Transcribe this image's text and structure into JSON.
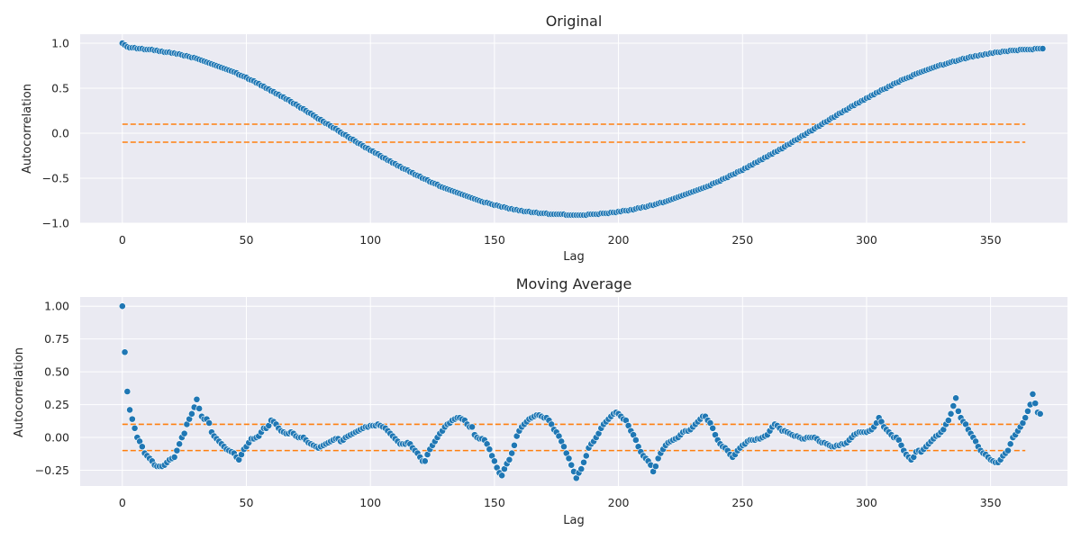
{
  "chart_data": [
    {
      "type": "scatter",
      "title": "Original",
      "xlabel": "Lag",
      "ylabel": "Autocorrelation",
      "xlim": [
        -17,
        381
      ],
      "ylim": [
        -1.0,
        1.1
      ],
      "xticks": [
        0,
        50,
        100,
        150,
        200,
        250,
        300,
        350
      ],
      "yticks": [
        -1.0,
        -0.5,
        0.0,
        0.5,
        1.0
      ],
      "ytick_labels": [
        "−1.0",
        "−0.5",
        "0.0",
        "0.5",
        "1.0"
      ],
      "grid": true,
      "series": [
        {
          "kind": "points",
          "color": "#1f77b4",
          "x_start": 0,
          "x_step": 1,
          "y": [
            1.0,
            0.98,
            0.96,
            0.95,
            0.95,
            0.95,
            0.94,
            0.94,
            0.94,
            0.93,
            0.93,
            0.93,
            0.93,
            0.92,
            0.92,
            0.91,
            0.91,
            0.9,
            0.9,
            0.9,
            0.89,
            0.89,
            0.88,
            0.88,
            0.87,
            0.86,
            0.86,
            0.85,
            0.84,
            0.84,
            0.83,
            0.82,
            0.81,
            0.8,
            0.79,
            0.78,
            0.77,
            0.76,
            0.75,
            0.74,
            0.73,
            0.72,
            0.71,
            0.7,
            0.69,
            0.68,
            0.67,
            0.65,
            0.64,
            0.63,
            0.62,
            0.6,
            0.59,
            0.58,
            0.56,
            0.55,
            0.53,
            0.52,
            0.5,
            0.49,
            0.47,
            0.46,
            0.44,
            0.43,
            0.41,
            0.4,
            0.38,
            0.37,
            0.35,
            0.33,
            0.32,
            0.3,
            0.28,
            0.27,
            0.25,
            0.23,
            0.22,
            0.2,
            0.18,
            0.16,
            0.15,
            0.13,
            0.11,
            0.1,
            0.08,
            0.06,
            0.05,
            0.03,
            0.01,
            -0.01,
            -0.02,
            -0.04,
            -0.06,
            -0.07,
            -0.09,
            -0.11,
            -0.12,
            -0.14,
            -0.16,
            -0.17,
            -0.19,
            -0.2,
            -0.22,
            -0.23,
            -0.25,
            -0.27,
            -0.28,
            -0.3,
            -0.31,
            -0.33,
            -0.34,
            -0.36,
            -0.37,
            -0.39,
            -0.4,
            -0.41,
            -0.43,
            -0.44,
            -0.46,
            -0.47,
            -0.48,
            -0.5,
            -0.51,
            -0.52,
            -0.54,
            -0.55,
            -0.56,
            -0.57,
            -0.59,
            -0.6,
            -0.61,
            -0.62,
            -0.63,
            -0.64,
            -0.65,
            -0.66,
            -0.67,
            -0.68,
            -0.69,
            -0.7,
            -0.71,
            -0.72,
            -0.73,
            -0.74,
            -0.75,
            -0.76,
            -0.77,
            -0.77,
            -0.78,
            -0.79,
            -0.8,
            -0.8,
            -0.81,
            -0.82,
            -0.82,
            -0.83,
            -0.84,
            -0.84,
            -0.85,
            -0.85,
            -0.86,
            -0.86,
            -0.87,
            -0.87,
            -0.87,
            -0.88,
            -0.88,
            -0.88,
            -0.89,
            -0.89,
            -0.89,
            -0.89,
            -0.9,
            -0.9,
            -0.9,
            -0.9,
            -0.9,
            -0.9,
            -0.9,
            -0.91,
            -0.91,
            -0.91,
            -0.91,
            -0.91,
            -0.91,
            -0.91,
            -0.91,
            -0.91,
            -0.9,
            -0.9,
            -0.9,
            -0.9,
            -0.9,
            -0.89,
            -0.89,
            -0.89,
            -0.89,
            -0.88,
            -0.88,
            -0.88,
            -0.87,
            -0.87,
            -0.86,
            -0.86,
            -0.86,
            -0.85,
            -0.85,
            -0.84,
            -0.83,
            -0.83,
            -0.82,
            -0.82,
            -0.81,
            -0.8,
            -0.8,
            -0.79,
            -0.78,
            -0.77,
            -0.77,
            -0.76,
            -0.75,
            -0.74,
            -0.73,
            -0.72,
            -0.71,
            -0.7,
            -0.69,
            -0.68,
            -0.67,
            -0.66,
            -0.65,
            -0.64,
            -0.63,
            -0.62,
            -0.61,
            -0.6,
            -0.59,
            -0.58,
            -0.56,
            -0.55,
            -0.54,
            -0.53,
            -0.51,
            -0.5,
            -0.49,
            -0.47,
            -0.46,
            -0.45,
            -0.43,
            -0.42,
            -0.41,
            -0.39,
            -0.38,
            -0.36,
            -0.35,
            -0.33,
            -0.32,
            -0.3,
            -0.29,
            -0.27,
            -0.26,
            -0.24,
            -0.23,
            -0.21,
            -0.2,
            -0.18,
            -0.17,
            -0.15,
            -0.13,
            -0.12,
            -0.1,
            -0.08,
            -0.07,
            -0.05,
            -0.03,
            -0.02,
            0.0,
            0.02,
            0.03,
            0.05,
            0.07,
            0.08,
            0.1,
            0.12,
            0.13,
            0.15,
            0.17,
            0.18,
            0.2,
            0.22,
            0.23,
            0.25,
            0.26,
            0.28,
            0.3,
            0.31,
            0.33,
            0.34,
            0.36,
            0.37,
            0.39,
            0.4,
            0.42,
            0.43,
            0.45,
            0.46,
            0.48,
            0.49,
            0.5,
            0.52,
            0.53,
            0.55,
            0.56,
            0.57,
            0.59,
            0.6,
            0.61,
            0.62,
            0.63,
            0.65,
            0.66,
            0.67,
            0.68,
            0.69,
            0.7,
            0.71,
            0.72,
            0.73,
            0.74,
            0.75,
            0.76,
            0.76,
            0.77,
            0.78,
            0.79,
            0.8,
            0.8,
            0.81,
            0.82,
            0.83,
            0.83,
            0.84,
            0.85,
            0.85,
            0.86,
            0.86,
            0.87,
            0.87,
            0.88,
            0.88,
            0.89,
            0.89,
            0.9,
            0.9,
            0.9,
            0.91,
            0.91,
            0.91,
            0.92,
            0.92,
            0.92,
            0.92,
            0.93,
            0.93,
            0.93,
            0.93,
            0.93,
            0.93,
            0.94,
            0.94,
            0.94,
            0.94
          ]
        },
        {
          "kind": "hline",
          "color": "#ff7f0e",
          "y": 0.1,
          "x": [
            0,
            364
          ]
        },
        {
          "kind": "hline",
          "color": "#ff7f0e",
          "y": -0.1,
          "x": [
            0,
            364
          ]
        }
      ]
    },
    {
      "type": "scatter",
      "title": "Moving Average",
      "xlabel": "Lag",
      "ylabel": "Autocorrelation",
      "xlim": [
        -17,
        381
      ],
      "ylim": [
        -0.37,
        1.07
      ],
      "xticks": [
        0,
        50,
        100,
        150,
        200,
        250,
        300,
        350
      ],
      "yticks": [
        -0.25,
        0.0,
        0.25,
        0.5,
        0.75,
        1.0
      ],
      "ytick_labels": [
        "−0.25",
        "0.00",
        "0.25",
        "0.50",
        "0.75",
        "1.00"
      ],
      "grid": true,
      "series": [
        {
          "kind": "points",
          "color": "#1f77b4",
          "x_start": 0,
          "x_step": 1,
          "y": [
            1.0,
            0.65,
            0.35,
            0.21,
            0.14,
            0.07,
            0.0,
            -0.03,
            -0.07,
            -0.12,
            -0.14,
            -0.16,
            -0.18,
            -0.21,
            -0.22,
            -0.22,
            -0.22,
            -0.21,
            -0.19,
            -0.17,
            -0.16,
            -0.15,
            -0.1,
            -0.05,
            0.0,
            0.03,
            0.1,
            0.14,
            0.18,
            0.23,
            0.29,
            0.22,
            0.16,
            0.14,
            0.14,
            0.11,
            0.04,
            0.01,
            -0.01,
            -0.03,
            -0.05,
            -0.07,
            -0.09,
            -0.1,
            -0.11,
            -0.12,
            -0.15,
            -0.17,
            -0.13,
            -0.09,
            -0.07,
            -0.04,
            -0.01,
            -0.01,
            0.0,
            0.01,
            0.04,
            0.07,
            0.07,
            0.09,
            0.13,
            0.12,
            0.1,
            0.07,
            0.05,
            0.04,
            0.03,
            0.03,
            0.04,
            0.03,
            0.01,
            0.0,
            0.0,
            0.0,
            -0.02,
            -0.04,
            -0.05,
            -0.06,
            -0.07,
            -0.08,
            -0.07,
            -0.06,
            -0.05,
            -0.04,
            -0.03,
            -0.02,
            -0.01,
            -0.01,
            -0.03,
            -0.02,
            0.0,
            0.01,
            0.02,
            0.03,
            0.04,
            0.05,
            0.06,
            0.07,
            0.08,
            0.08,
            0.09,
            0.09,
            0.09,
            0.1,
            0.09,
            0.08,
            0.07,
            0.05,
            0.03,
            0.01,
            -0.01,
            -0.03,
            -0.05,
            -0.05,
            -0.05,
            -0.04,
            -0.05,
            -0.08,
            -0.1,
            -0.12,
            -0.15,
            -0.18,
            -0.18,
            -0.13,
            -0.09,
            -0.06,
            -0.03,
            0.0,
            0.03,
            0.05,
            0.08,
            0.1,
            0.11,
            0.13,
            0.14,
            0.15,
            0.15,
            0.14,
            0.13,
            0.1,
            0.08,
            0.08,
            0.02,
            0.0,
            -0.01,
            -0.01,
            -0.02,
            -0.05,
            -0.09,
            -0.14,
            -0.18,
            -0.23,
            -0.27,
            -0.29,
            -0.24,
            -0.2,
            -0.17,
            -0.12,
            -0.06,
            0.01,
            0.05,
            0.08,
            0.1,
            0.12,
            0.14,
            0.15,
            0.16,
            0.17,
            0.17,
            0.16,
            0.15,
            0.15,
            0.13,
            0.1,
            0.06,
            0.04,
            0.01,
            -0.03,
            -0.07,
            -0.12,
            -0.16,
            -0.21,
            -0.26,
            -0.31,
            -0.27,
            -0.24,
            -0.19,
            -0.14,
            -0.08,
            -0.05,
            -0.03,
            0.0,
            0.03,
            0.07,
            0.1,
            0.12,
            0.14,
            0.16,
            0.18,
            0.19,
            0.18,
            0.16,
            0.14,
            0.13,
            0.09,
            0.05,
            0.02,
            -0.02,
            -0.07,
            -0.11,
            -0.14,
            -0.16,
            -0.18,
            -0.21,
            -0.26,
            -0.22,
            -0.16,
            -0.12,
            -0.09,
            -0.06,
            -0.04,
            -0.03,
            -0.02,
            -0.01,
            0.0,
            0.02,
            0.04,
            0.05,
            0.05,
            0.06,
            0.08,
            0.1,
            0.12,
            0.14,
            0.16,
            0.16,
            0.13,
            0.11,
            0.07,
            0.02,
            -0.02,
            -0.05,
            -0.07,
            -0.08,
            -0.1,
            -0.13,
            -0.15,
            -0.13,
            -0.1,
            -0.08,
            -0.06,
            -0.05,
            -0.03,
            -0.02,
            -0.02,
            -0.02,
            -0.01,
            -0.01,
            0.0,
            0.01,
            0.02,
            0.05,
            0.08,
            0.1,
            0.09,
            0.07,
            0.05,
            0.05,
            0.04,
            0.03,
            0.02,
            0.01,
            0.01,
            0.0,
            -0.01,
            -0.01,
            0.0,
            0.0,
            0.0,
            0.0,
            -0.01,
            -0.03,
            -0.04,
            -0.04,
            -0.05,
            -0.06,
            -0.07,
            -0.07,
            -0.06,
            -0.06,
            -0.05,
            -0.05,
            -0.04,
            -0.02,
            0.0,
            0.02,
            0.03,
            0.04,
            0.04,
            0.04,
            0.04,
            0.05,
            0.06,
            0.08,
            0.11,
            0.15,
            0.12,
            0.08,
            0.06,
            0.04,
            0.02,
            0.0,
            0.0,
            -0.02,
            -0.06,
            -0.1,
            -0.13,
            -0.15,
            -0.17,
            -0.15,
            -0.11,
            -0.1,
            -0.11,
            -0.09,
            -0.07,
            -0.05,
            -0.03,
            -0.01,
            0.01,
            0.02,
            0.04,
            0.06,
            0.1,
            0.13,
            0.18,
            0.24,
            0.3,
            0.2,
            0.15,
            0.12,
            0.1,
            0.06,
            0.03,
            0.0,
            -0.03,
            -0.07,
            -0.1,
            -0.12,
            -0.13,
            -0.15,
            -0.17,
            -0.18,
            -0.19,
            -0.19,
            -0.17,
            -0.14,
            -0.12,
            -0.1,
            -0.05,
            0.0,
            0.02,
            0.05,
            0.08,
            0.11,
            0.15,
            0.2,
            0.25,
            0.33,
            0.26,
            0.19,
            0.18
          ]
        },
        {
          "kind": "hline",
          "color": "#ff7f0e",
          "y": 0.1,
          "x": [
            0,
            364
          ]
        },
        {
          "kind": "hline",
          "color": "#ff7f0e",
          "y": -0.1,
          "x": [
            0,
            364
          ]
        }
      ]
    }
  ]
}
